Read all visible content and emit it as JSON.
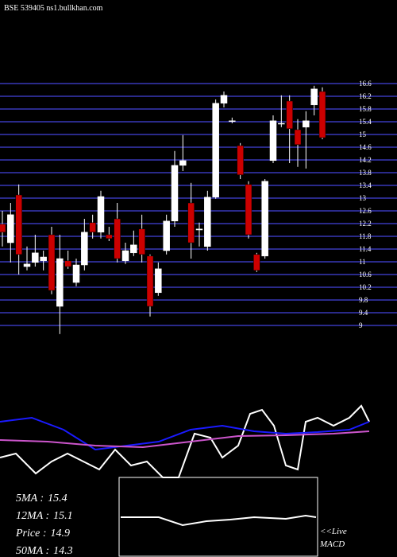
{
  "chart_data": [
    {
      "type": "candlestick",
      "title": "BSE 539405 ns1.bullkhan.com",
      "up_color": "#ffffff",
      "down_color": "#cc0000",
      "grid_color": "#2a2a8a",
      "ylim": [
        8.725,
        16.6
      ],
      "yticks": [
        16.6,
        16.2,
        15.8,
        15.4,
        15,
        14.6,
        14.2,
        13.8,
        13.4,
        13,
        12.6,
        12.2,
        11.8,
        11.4,
        11,
        10.6,
        10.2,
        9.8,
        9.4,
        9
      ],
      "open": [
        12.18,
        11.6,
        13.1,
        10.85,
        10.98,
        11.03,
        11.85,
        9.6,
        11.03,
        10.35,
        10.9,
        12.23,
        11.93,
        11.85,
        12.35,
        11.03,
        11.28,
        12.03,
        11.18,
        10.03,
        11.35,
        12.28,
        14.03,
        12.85,
        12.0,
        11.48,
        13.03,
        15.98,
        15.43,
        14.65,
        13.43,
        11.23,
        11.18,
        14.18,
        15.35,
        16.05,
        15.15,
        15.23,
        15.93,
        16.35
      ],
      "high": [
        12.6,
        12.85,
        13.43,
        11.48,
        11.85,
        11.35,
        12.1,
        11.85,
        11.35,
        11.1,
        12.35,
        12.48,
        13.23,
        12.1,
        12.85,
        11.6,
        11.98,
        12.48,
        11.23,
        10.98,
        12.48,
        14.48,
        14.98,
        13.48,
        12.23,
        13.23,
        16.1,
        16.35,
        15.53,
        14.73,
        13.53,
        11.28,
        13.6,
        15.6,
        16.23,
        16.23,
        15.48,
        15.73,
        16.53,
        16.48
      ],
      "low": [
        11.48,
        10.98,
        10.6,
        10.73,
        10.85,
        10.73,
        9.98,
        8.73,
        10.78,
        10.23,
        10.73,
        11.73,
        11.73,
        11.65,
        10.98,
        10.93,
        11.18,
        10.98,
        9.28,
        9.93,
        11.23,
        12.1,
        13.85,
        11.1,
        11.48,
        11.35,
        12.98,
        15.85,
        15.35,
        13.6,
        11.73,
        10.68,
        11.1,
        14.1,
        15.23,
        14.1,
        13.98,
        13.93,
        15.6,
        14.85
      ],
      "close": [
        11.93,
        12.48,
        11.23,
        10.93,
        11.28,
        11.15,
        10.1,
        11.1,
        10.85,
        10.9,
        11.93,
        11.93,
        13.05,
        11.73,
        11.1,
        11.35,
        11.53,
        11.23,
        9.6,
        10.78,
        12.28,
        14.03,
        14.18,
        11.6,
        12.03,
        13.03,
        15.98,
        16.23,
        15.43,
        13.73,
        11.85,
        10.73,
        13.53,
        15.43,
        15.35,
        15.18,
        14.68,
        15.43,
        16.43,
        14.9
      ]
    },
    {
      "type": "line",
      "xlim": [
        0,
        465
      ],
      "ylim": [
        0,
        100
      ],
      "series": [
        {
          "color": "#ffffff",
          "x": [
            0,
            20,
            45,
            65,
            85,
            105,
            125,
            145,
            165,
            185,
            205,
            225,
            245,
            265,
            280,
            300,
            315,
            330,
            345,
            360,
            375,
            385,
            400,
            420,
            440,
            455,
            465
          ],
          "values": [
            25,
            30,
            5,
            20,
            30,
            20,
            10,
            35,
            15,
            20,
            0,
            0,
            55,
            50,
            25,
            40,
            80,
            85,
            65,
            15,
            10,
            70,
            75,
            65,
            75,
            90,
            70
          ]
        },
        {
          "color": "#1a1aff",
          "x": [
            0,
            40,
            80,
            120,
            160,
            200,
            240,
            280,
            320,
            360,
            400,
            440,
            465
          ],
          "values": [
            70,
            75,
            60,
            35,
            40,
            45,
            60,
            65,
            58,
            55,
            57,
            60,
            70
          ]
        },
        {
          "color": "#cc55cc",
          "x": [
            0,
            60,
            120,
            180,
            240,
            300,
            360,
            420,
            465
          ],
          "values": [
            47,
            45,
            40,
            38,
            45,
            52,
            53,
            55,
            58
          ]
        }
      ]
    },
    {
      "type": "line",
      "title": "MACD",
      "note": "<<Live",
      "xlim": [
        150,
        400
      ],
      "ylim": [
        0,
        100
      ],
      "series": [
        {
          "color": "#ffffff",
          "x": [
            152,
            200,
            230,
            260,
            290,
            320,
            360,
            385,
            398
          ],
          "values": [
            50,
            50,
            40,
            45,
            47,
            50,
            48,
            52,
            50
          ]
        }
      ]
    }
  ],
  "stats": [
    {
      "label": "5MA :",
      "value": 15.4
    },
    {
      "label": "12MA :",
      "value": 15.1
    },
    {
      "label": "Price  :",
      "value": 14.9
    },
    {
      "label": "50MA :",
      "value": 14.3
    }
  ]
}
